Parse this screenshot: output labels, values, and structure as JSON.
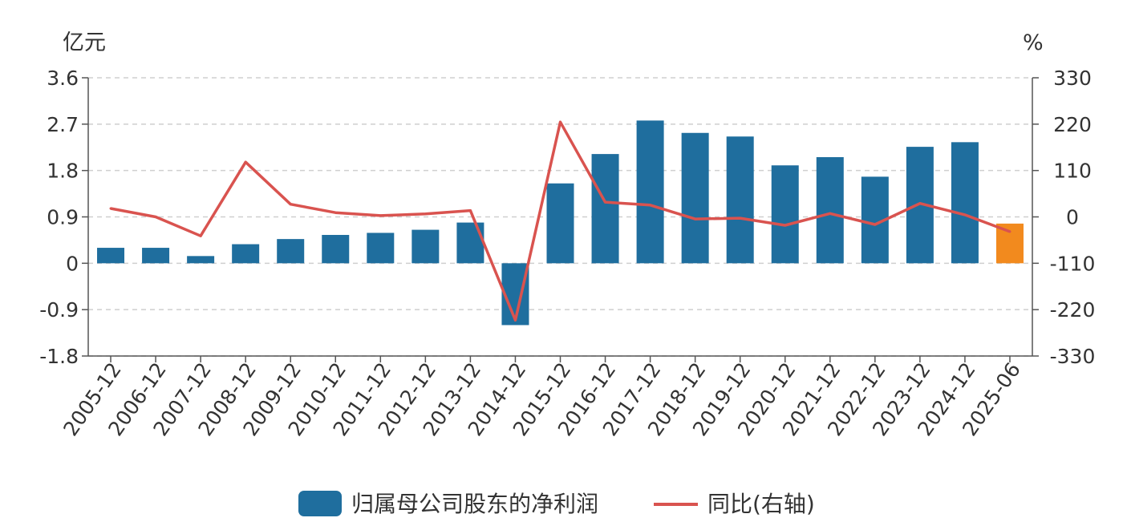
{
  "chart_data": {
    "type": "bar",
    "categories": [
      "2005-12",
      "2006-12",
      "2007-12",
      "2008-12",
      "2009-12",
      "2010-12",
      "2011-12",
      "2012-12",
      "2013-12",
      "2014-12",
      "2015-12",
      "2016-12",
      "2017-12",
      "2018-12",
      "2019-12",
      "2020-12",
      "2021-12",
      "2022-12",
      "2023-12",
      "2024-12",
      "2025-06"
    ],
    "series": [
      {
        "name": "归属母公司股东的净利润",
        "type": "bar",
        "axis": "left",
        "color": "#1f6e9e",
        "highlight_color": "#f28a1e",
        "highlight_category": "2025-06",
        "values": [
          0.3,
          0.3,
          0.14,
          0.37,
          0.47,
          0.55,
          0.59,
          0.65,
          0.79,
          -1.2,
          1.55,
          2.12,
          2.77,
          2.53,
          2.46,
          1.9,
          2.06,
          1.68,
          2.26,
          2.35,
          0.77
        ]
      },
      {
        "name": "同比(右轴)",
        "type": "line",
        "axis": "right",
        "color": "#d9534f",
        "values": [
          20,
          0,
          -45,
          130,
          30,
          10,
          3,
          7,
          15,
          -245,
          225,
          35,
          28,
          -5,
          -3,
          -20,
          8,
          -18,
          32,
          5,
          -35
        ]
      }
    ],
    "left_axis": {
      "unit": "亿元",
      "ylim": [
        -1.8,
        3.6
      ],
      "ticks": [
        "3.6",
        "2.7",
        "1.8",
        "0.9",
        "0",
        "-0.9",
        "-1.8"
      ]
    },
    "right_axis": {
      "unit": "%",
      "ylim": [
        -330,
        330
      ],
      "ticks": [
        "330",
        "220",
        "110",
        "0",
        "-110",
        "-220",
        "-330"
      ]
    },
    "grid": true,
    "legend_position": "bottom-center"
  }
}
